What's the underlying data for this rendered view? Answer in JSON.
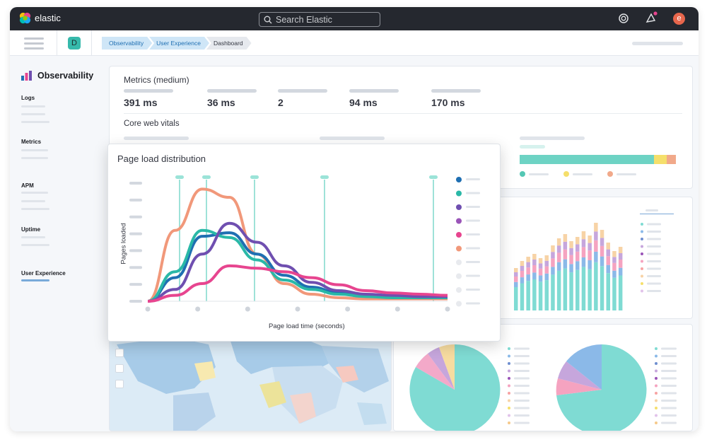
{
  "app": {
    "brand": "elastic",
    "search_placeholder": "Search Elastic",
    "avatar_letter": "e",
    "space_letter": "D"
  },
  "breadcrumbs": [
    "Observability",
    "User Experience",
    "Dashboard"
  ],
  "sidebar": {
    "title": "Observability",
    "sections": [
      "Logs",
      "Metrics",
      "APM",
      "Uptime",
      "User Experience"
    ],
    "active": "User Experience"
  },
  "metrics": {
    "title": "Metrics (medium)",
    "values": [
      "391 ms",
      "36 ms",
      "2",
      "94 ms",
      "170 ms"
    ],
    "cwv_title": "Core web vitals"
  },
  "colors": {
    "teal": "#54b399",
    "aqua": "#6dccb1",
    "blue": "#1f6fb2",
    "purple": "#6f4fb0",
    "violet": "#9170b8",
    "pink": "#e7458f",
    "salmon": "#f1987a",
    "yellow": "#f5df6b"
  },
  "chart_data": {
    "type": "line",
    "title": "Page load distribution",
    "xlabel": "Page load time (seconds)",
    "ylabel": "Pages loaded",
    "series": [
      {
        "color": "#f1987a",
        "values": [
          0,
          60,
          95,
          88,
          40,
          15,
          6,
          3,
          2,
          2,
          2,
          2
        ]
      },
      {
        "color": "#1f6fb2",
        "values": [
          0,
          20,
          55,
          58,
          40,
          22,
          12,
          7,
          5,
          4,
          4,
          4
        ]
      },
      {
        "color": "#2ab8a7",
        "values": [
          0,
          25,
          60,
          54,
          35,
          18,
          10,
          6,
          4,
          3,
          3,
          3
        ]
      },
      {
        "color": "#6f4fb0",
        "values": [
          0,
          10,
          40,
          66,
          50,
          30,
          16,
          9,
          6,
          5,
          4,
          4
        ]
      },
      {
        "color": "#e7458f",
        "values": [
          0,
          5,
          15,
          30,
          28,
          25,
          20,
          14,
          9,
          7,
          6,
          5
        ]
      }
    ]
  }
}
